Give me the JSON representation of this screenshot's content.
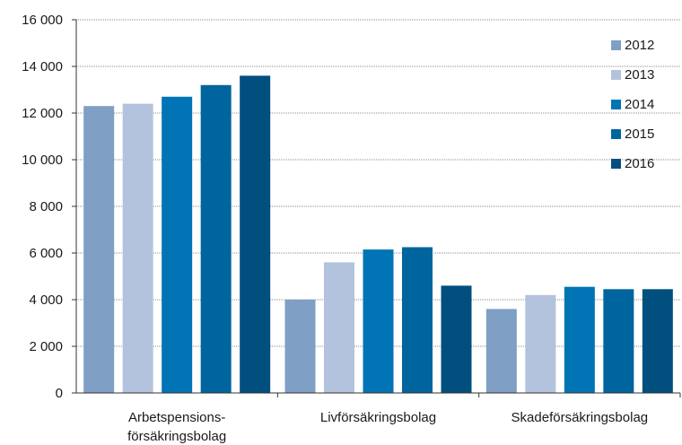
{
  "chart_data": {
    "type": "bar",
    "categories": [
      "Arbetspensions-\nförsäkringsbolag",
      "Livförsäkringsbolag",
      "Skadeförsäkringsbolag"
    ],
    "series": [
      {
        "name": "2012",
        "color": "#7f9fc4",
        "values": [
          12300,
          4000,
          3600
        ]
      },
      {
        "name": "2013",
        "color": "#b3c3de",
        "values": [
          12400,
          5600,
          4200
        ]
      },
      {
        "name": "2014",
        "color": "#0074b4",
        "values": [
          12700,
          6150,
          4550
        ]
      },
      {
        "name": "2015",
        "color": "#00659e",
        "values": [
          13200,
          6250,
          4450
        ]
      },
      {
        "name": "2016",
        "color": "#004f7f",
        "values": [
          13600,
          4600,
          4450
        ]
      }
    ],
    "ylim": [
      0,
      16000
    ],
    "yticks": [
      0,
      2000,
      4000,
      6000,
      8000,
      10000,
      12000,
      14000,
      16000
    ],
    "ytick_labels": [
      "0",
      "2 000",
      "4 000",
      "6 000",
      "8 000",
      "10 000",
      "12 000",
      "14 000",
      "16 000"
    ],
    "grid": true,
    "legend_position": "top-right"
  }
}
